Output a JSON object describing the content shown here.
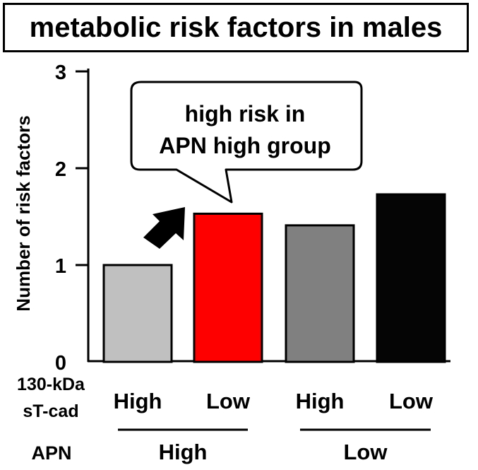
{
  "chart_data": {
    "type": "bar",
    "title": "metabolic risk factors in males",
    "ylabel": "Number of risk factors",
    "xlabel": "",
    "ylim": [
      0,
      3
    ],
    "yticks": [
      0,
      1,
      2,
      3
    ],
    "grid": false,
    "categories": [
      "High",
      "Low",
      "High",
      "Low"
    ],
    "category_row_label": "130-kDa sT-cad",
    "category_row_label_lines": [
      "130-kDa",
      "sT-cad"
    ],
    "groups": [
      {
        "label": "High",
        "categories": [
          0,
          1
        ]
      },
      {
        "label": "Low",
        "categories": [
          2,
          3
        ]
      }
    ],
    "group_row_label": "APN",
    "values": [
      1.0,
      1.53,
      1.41,
      1.73
    ],
    "bar_colors": [
      "#c0c0c0",
      "#ff0000",
      "#808080",
      "#050505"
    ],
    "annotation": {
      "text_lines": [
        "high risk in",
        "APN high group"
      ],
      "points_to_category": 1,
      "arrow": "up-right"
    }
  }
}
